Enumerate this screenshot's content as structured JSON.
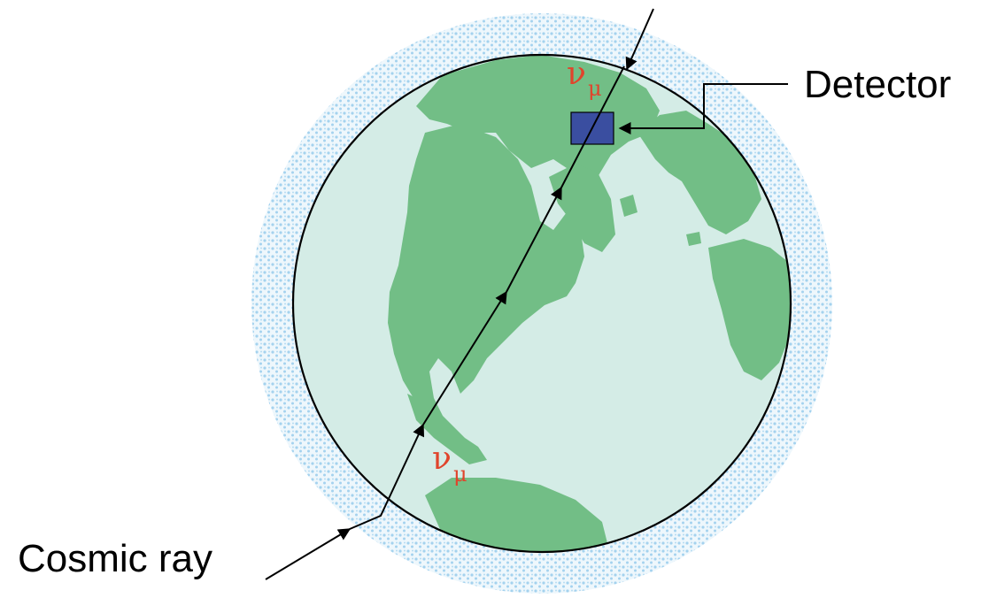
{
  "labels": {
    "detector": "Detector",
    "cosmic_ray": "Cosmic ray",
    "neutrino_top": "ν",
    "neutrino_top_sub": "μ",
    "neutrino_bottom": "ν",
    "neutrino_bottom_sub": "μ"
  },
  "colors": {
    "ocean": "#d4ece6",
    "land": "#72be86",
    "atmosphere_dots": "#8ec6ea",
    "detector": "#3a4ea0",
    "neutrino_label": "#e0442c",
    "lines": "#000000"
  }
}
